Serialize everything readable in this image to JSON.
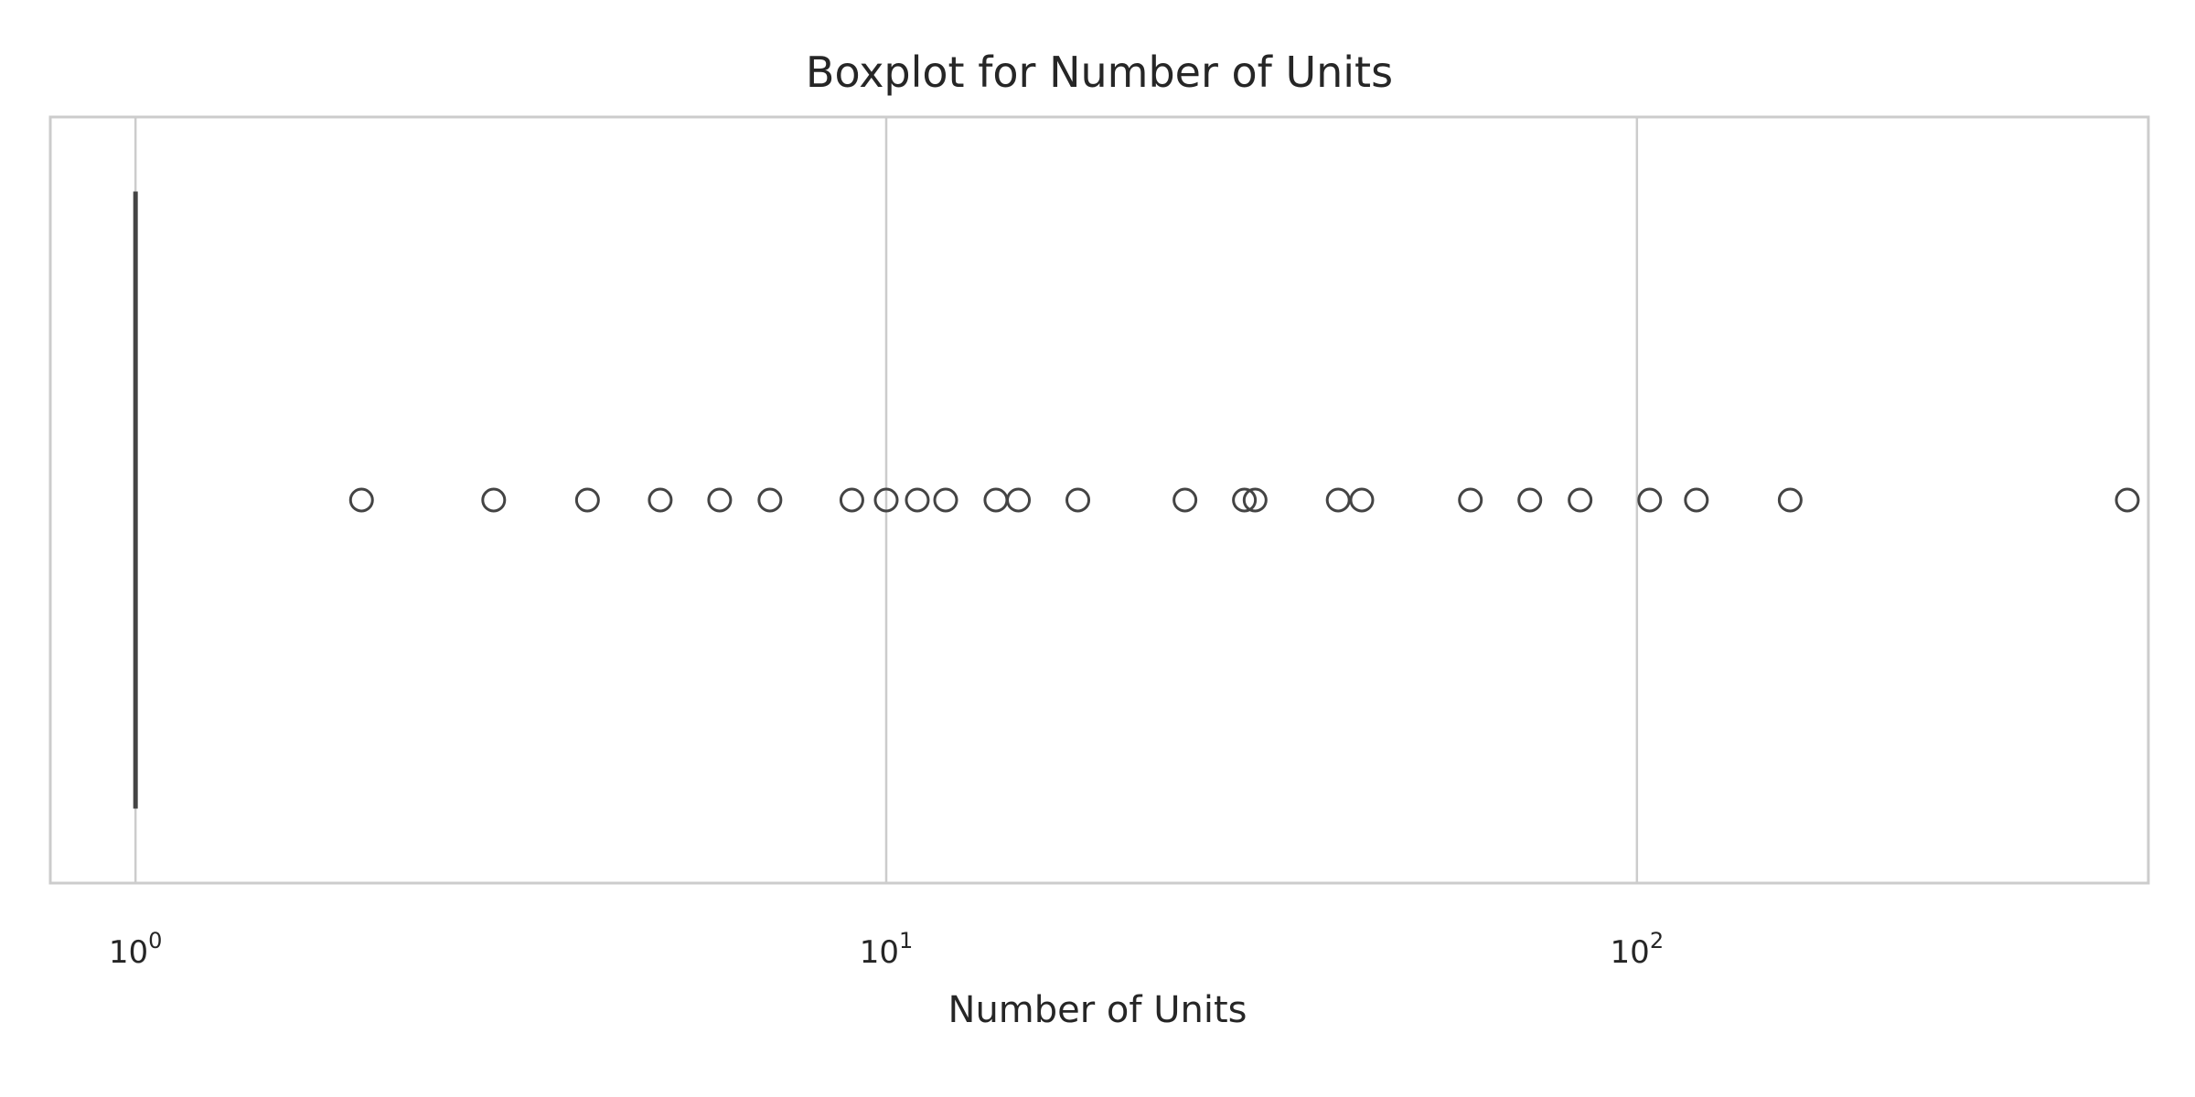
{
  "chart_data": {
    "type": "boxplot",
    "title": "Boxplot for Number of Units",
    "xlabel": "Number of Units",
    "ylabel": "",
    "x_scale": "log",
    "xlim": [
      0.77,
      480
    ],
    "grid": true,
    "orientation": "horizontal",
    "x_ticks": [
      {
        "value": 1,
        "base": "10",
        "exp": "0"
      },
      {
        "value": 10,
        "base": "10",
        "exp": "1"
      },
      {
        "value": 100,
        "base": "10",
        "exp": "2"
      }
    ],
    "box": {
      "min": 1,
      "q1": 1,
      "median": 1,
      "q3": 1,
      "max": 1
    },
    "outliers": [
      2,
      3,
      4,
      5,
      6,
      7,
      9,
      10,
      11,
      12,
      14,
      15,
      18,
      25,
      30,
      31,
      40,
      43,
      60,
      72,
      84,
      104,
      120,
      160,
      450
    ],
    "colors": {
      "line": "#444444",
      "grid": "#cccccc",
      "frame": "#cccccc",
      "text": "#262626"
    }
  }
}
